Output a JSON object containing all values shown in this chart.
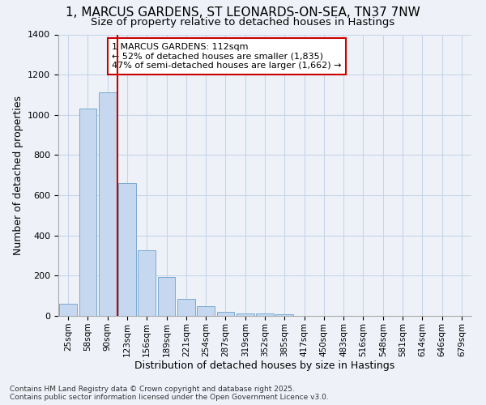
{
  "title1": "1, MARCUS GARDENS, ST LEONARDS-ON-SEA, TN37 7NW",
  "title2": "Size of property relative to detached houses in Hastings",
  "xlabel": "Distribution of detached houses by size in Hastings",
  "ylabel": "Number of detached properties",
  "categories": [
    "25sqm",
    "58sqm",
    "90sqm",
    "123sqm",
    "156sqm",
    "189sqm",
    "221sqm",
    "254sqm",
    "287sqm",
    "319sqm",
    "352sqm",
    "385sqm",
    "417sqm",
    "450sqm",
    "483sqm",
    "516sqm",
    "548sqm",
    "581sqm",
    "614sqm",
    "646sqm",
    "679sqm"
  ],
  "values": [
    62,
    1030,
    1110,
    660,
    325,
    192,
    85,
    48,
    22,
    14,
    14,
    10,
    0,
    0,
    0,
    0,
    0,
    0,
    0,
    0,
    0
  ],
  "bar_color": "#c5d8f0",
  "bar_edge_color": "#7aaad0",
  "vline_x": 2.5,
  "vline_color": "#cc0000",
  "annotation_text": "1 MARCUS GARDENS: 112sqm\n← 52% of detached houses are smaller (1,835)\n47% of semi-detached houses are larger (1,662) →",
  "annotation_box_color": "#ffffff",
  "annotation_box_edge": "#cc0000",
  "ylim": [
    0,
    1400
  ],
  "yticks": [
    0,
    200,
    400,
    600,
    800,
    1000,
    1200,
    1400
  ],
  "grid_color": "#c8d4e8",
  "background_color": "#eef2f8",
  "footer1": "Contains HM Land Registry data © Crown copyright and database right 2025.",
  "footer2": "Contains public sector information licensed under the Open Government Licence v3.0."
}
